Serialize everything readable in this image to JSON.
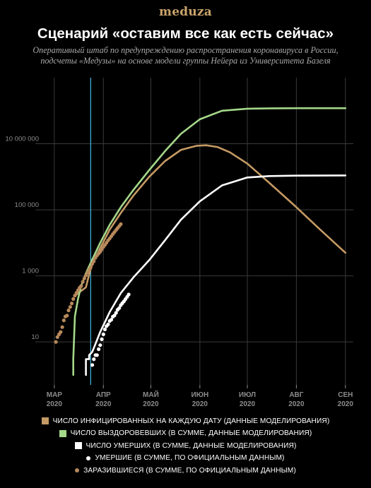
{
  "header": {
    "brand": "meduza",
    "title": "Сценарий «оставим все как есть сейчас»",
    "subtitle_line1": "Оперативный штаб по предупреждению распространения коронавируса в России,",
    "subtitle_line2": "подсчеты «Медузы» на основе модели группы Нейера из Университета Базеля"
  },
  "colors": {
    "infected": "#c59a64",
    "recovered": "#a4d88a",
    "deaths": "#ffffff",
    "official_infected": "#b8895c",
    "official_deaths": "#ffffff",
    "today_line": "#3fb2d6",
    "grid": "#3a3a3a",
    "axis_text": "#8c8c8c"
  },
  "legend": [
    {
      "label": "ЧИСЛО ИНФИЦИРОВАННЫХ НА КАЖДУЮ ДАТУ (ДАННЫЕ МОДЕЛИРОВАНИЯ)",
      "color": "#c59a64",
      "marker": "square"
    },
    {
      "label": "ЧИСЛО ВЫЗДОРОВЕВШИХ (В СУММЕ, ДАННЫЕ МОДЕЛИРОВАНИЯ)",
      "color": "#a4d88a",
      "marker": "square"
    },
    {
      "label": "ЧИСЛО УМЕРШИХ (В СУММЕ, ДАННЫЕ МОДЕЛИРОВАНИЯ)",
      "color": "#ffffff",
      "marker": "square"
    },
    {
      "label": "УМЕРШИЕ (В СУММЕ, ПО ОФИЦИАЛЬНЫМ ДАННЫМ)",
      "color": "#ffffff",
      "marker": "dot"
    },
    {
      "label": "ЗАРАЗИВШИЕСЯ (В СУММЕ, ПО ОФИЦИАЛЬНЫМ ДАННЫМ)",
      "color": "#b8895c",
      "marker": "dot"
    }
  ],
  "chart_data": {
    "type": "line",
    "title": "Сценарий «оставим все как есть сейчас»",
    "yscale": "log",
    "ylim": [
      0.5,
      1000000000.0
    ],
    "y_ticks": [
      {
        "value": 10,
        "label": "10"
      },
      {
        "value": 1000,
        "label": "1 000"
      },
      {
        "value": 100000,
        "label": "100 000"
      },
      {
        "value": 10000000,
        "label": "10 000 000"
      }
    ],
    "x_ticks": [
      {
        "date": "2020-03-01",
        "month": "МАР",
        "year": "2020"
      },
      {
        "date": "2020-04-01",
        "month": "АПР",
        "year": "2020"
      },
      {
        "date": "2020-05-01",
        "month": "МАЙ",
        "year": "2020"
      },
      {
        "date": "2020-06-01",
        "month": "ИЮН",
        "year": "2020"
      },
      {
        "date": "2020-07-01",
        "month": "ИЮЛ",
        "year": "2020"
      },
      {
        "date": "2020-08-01",
        "month": "АВГ",
        "year": "2020"
      },
      {
        "date": "2020-09-01",
        "month": "СЕН",
        "year": "2020"
      }
    ],
    "xlim": [
      "2020-02-18",
      "2020-09-06"
    ],
    "today_marker": "2020-03-24",
    "grid": true,
    "series": [
      {
        "name": "ЧИСЛО ИНФИЦИРОВАННЫХ НА КАЖДУЮ ДАТУ (ДАННЫЕ МОДЕЛИРОВАНИЯ)",
        "kind": "line",
        "color": "#c59a64",
        "points": [
          [
            "2020-03-14",
            250
          ],
          [
            "2020-03-18",
            350
          ],
          [
            "2020-03-21",
            450
          ],
          [
            "2020-03-23",
            1100
          ],
          [
            "2020-03-25",
            2300
          ],
          [
            "2020-03-30",
            7000
          ],
          [
            "2020-04-05",
            25000
          ],
          [
            "2020-04-12",
            80000
          ],
          [
            "2020-04-20",
            270000
          ],
          [
            "2020-04-30",
            1000000
          ],
          [
            "2020-05-10",
            3000000
          ],
          [
            "2020-05-20",
            6500000
          ],
          [
            "2020-05-30",
            8700000
          ],
          [
            "2020-06-05",
            9000000
          ],
          [
            "2020-06-12",
            8000000
          ],
          [
            "2020-06-20",
            5500000
          ],
          [
            "2020-07-01",
            2500000
          ],
          [
            "2020-07-15",
            650000
          ],
          [
            "2020-08-01",
            120000
          ],
          [
            "2020-08-15",
            28000
          ],
          [
            "2020-09-01",
            5000
          ]
        ]
      },
      {
        "name": "ЧИСЛО ВЫЗДОРОВЕВШИХ (В СУММЕ, ДАННЫЕ МОДЕЛИРОВАНИЯ)",
        "kind": "line",
        "color": "#a4d88a",
        "points": [
          [
            "2020-03-13",
            1
          ],
          [
            "2020-03-13",
            3
          ],
          [
            "2020-03-14",
            60
          ],
          [
            "2020-03-16",
            200
          ],
          [
            "2020-03-18",
            500
          ],
          [
            "2020-03-21",
            1200
          ],
          [
            "2020-03-24",
            2500
          ],
          [
            "2020-03-30",
            10000
          ],
          [
            "2020-04-05",
            35000
          ],
          [
            "2020-04-12",
            120000
          ],
          [
            "2020-04-20",
            400000
          ],
          [
            "2020-04-30",
            1600000
          ],
          [
            "2020-05-10",
            6000000
          ],
          [
            "2020-05-20",
            20000000
          ],
          [
            "2020-06-01",
            55000000
          ],
          [
            "2020-06-15",
            100000000
          ],
          [
            "2020-07-01",
            115000000
          ],
          [
            "2020-07-15",
            118000000
          ],
          [
            "2020-08-01",
            119000000
          ],
          [
            "2020-09-01",
            119000000
          ]
        ]
      },
      {
        "name": "ЧИСЛО УМЕРШИХ (В СУММЕ, ДАННЫЕ МОДЕЛИРОВАНИЯ)",
        "kind": "line",
        "color": "#ffffff",
        "points": [
          [
            "2020-03-21",
            1
          ],
          [
            "2020-03-21",
            3
          ],
          [
            "2020-03-23",
            3
          ],
          [
            "2020-03-23",
            4
          ],
          [
            "2020-03-25",
            5
          ],
          [
            "2020-03-30",
            20
          ],
          [
            "2020-04-05",
            80
          ],
          [
            "2020-04-12",
            300
          ],
          [
            "2020-04-20",
            900
          ],
          [
            "2020-04-30",
            3000
          ],
          [
            "2020-05-10",
            12000
          ],
          [
            "2020-05-20",
            50000
          ],
          [
            "2020-06-01",
            180000
          ],
          [
            "2020-06-15",
            550000
          ],
          [
            "2020-07-01",
            950000
          ],
          [
            "2020-07-15",
            1050000
          ],
          [
            "2020-08-01",
            1080000
          ],
          [
            "2020-09-01",
            1100000
          ]
        ]
      },
      {
        "name": "УМЕРШИЕ (В СУММЕ, ПО ОФИЦИАЛЬНЫМ ДАННЫМ)",
        "kind": "scatter",
        "color": "#ffffff",
        "points": [
          [
            "2020-03-25",
            2
          ],
          [
            "2020-03-26",
            3
          ],
          [
            "2020-03-27",
            4
          ],
          [
            "2020-03-28",
            4
          ],
          [
            "2020-03-29",
            6
          ],
          [
            "2020-03-30",
            8
          ],
          [
            "2020-03-31",
            12
          ],
          [
            "2020-04-01",
            17
          ],
          [
            "2020-04-02",
            24
          ],
          [
            "2020-04-03",
            30
          ],
          [
            "2020-04-04",
            34
          ],
          [
            "2020-04-05",
            43
          ],
          [
            "2020-04-06",
            47
          ],
          [
            "2020-04-07",
            58
          ],
          [
            "2020-04-08",
            63
          ],
          [
            "2020-04-09",
            76
          ],
          [
            "2020-04-10",
            94
          ],
          [
            "2020-04-11",
            106
          ],
          [
            "2020-04-12",
            130
          ],
          [
            "2020-04-13",
            148
          ],
          [
            "2020-04-14",
            170
          ],
          [
            "2020-04-15",
            198
          ],
          [
            "2020-04-16",
            232
          ],
          [
            "2020-04-17",
            273
          ]
        ]
      },
      {
        "name": "ЗАРАЗИВШИЕСЯ (В СУММЕ, ПО ОФИЦИАЛЬНЫМ ДАННЫМ)",
        "kind": "scatter",
        "color": "#b8895c",
        "points": [
          [
            "2020-03-02",
            10
          ],
          [
            "2020-03-03",
            14
          ],
          [
            "2020-03-04",
            17
          ],
          [
            "2020-03-05",
            20
          ],
          [
            "2020-03-06",
            28
          ],
          [
            "2020-03-07",
            45
          ],
          [
            "2020-03-08",
            59
          ],
          [
            "2020-03-09",
            63
          ],
          [
            "2020-03-10",
            90
          ],
          [
            "2020-03-11",
            114
          ],
          [
            "2020-03-12",
            147
          ],
          [
            "2020-03-13",
            199
          ],
          [
            "2020-03-14",
            253
          ],
          [
            "2020-03-15",
            306
          ],
          [
            "2020-03-16",
            367
          ],
          [
            "2020-03-17",
            438
          ],
          [
            "2020-03-18",
            495
          ],
          [
            "2020-03-19",
            658
          ],
          [
            "2020-03-20",
            840
          ],
          [
            "2020-03-21",
            1036
          ],
          [
            "2020-03-22",
            1264
          ],
          [
            "2020-03-23",
            1534
          ],
          [
            "2020-03-24",
            1836
          ],
          [
            "2020-03-25",
            2337
          ],
          [
            "2020-03-26",
            2777
          ],
          [
            "2020-03-27",
            3548
          ],
          [
            "2020-03-28",
            4149
          ],
          [
            "2020-03-29",
            4731
          ],
          [
            "2020-03-30",
            5389
          ],
          [
            "2020-03-31",
            6343
          ],
          [
            "2020-04-01",
            7497
          ],
          [
            "2020-04-02",
            8672
          ],
          [
            "2020-04-03",
            10131
          ],
          [
            "2020-04-04",
            11917
          ],
          [
            "2020-04-05",
            13584
          ],
          [
            "2020-04-06",
            15770
          ],
          [
            "2020-04-07",
            18328
          ],
          [
            "2020-04-08",
            21102
          ],
          [
            "2020-04-09",
            24490
          ],
          [
            "2020-04-10",
            27938
          ],
          [
            "2020-04-11",
            32008
          ],
          [
            "2020-04-12",
            36793
          ]
        ]
      }
    ]
  }
}
